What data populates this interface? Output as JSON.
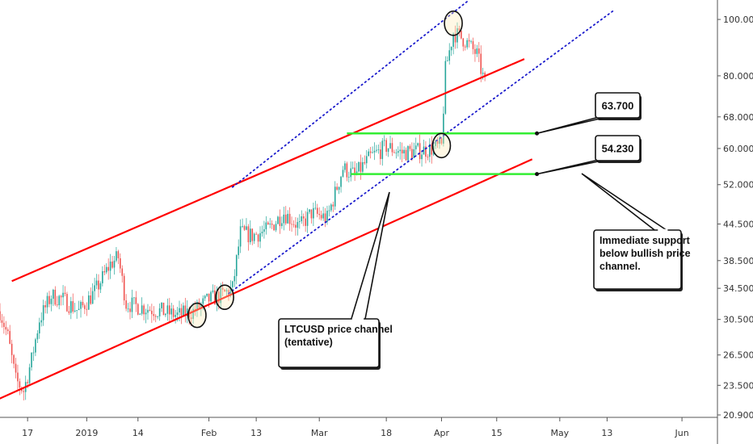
{
  "chart_data": {
    "type": "candlestick",
    "symbol_note": "LTCUSD",
    "y_scale": "log",
    "ylim": [
      20.9,
      108
    ],
    "x_range": [
      "2018-12-10",
      "2019-06-10"
    ],
    "y_ticks": [
      "100.000",
      "80.000",
      "68.000",
      "60.000",
      "52.000",
      "44.500",
      "38.500",
      "34.500",
      "30.500",
      "26.500",
      "23.500",
      "20.900"
    ],
    "x_ticks": [
      {
        "label": "17",
        "date": "2018-12-17"
      },
      {
        "label": "2019",
        "date": "2019-01-01"
      },
      {
        "label": "14",
        "date": "2019-01-14"
      },
      {
        "label": "Feb",
        "date": "2019-02-01"
      },
      {
        "label": "13",
        "date": "2019-02-13"
      },
      {
        "label": "Mar",
        "date": "2019-03-01"
      },
      {
        "label": "18",
        "date": "2019-03-18"
      },
      {
        "label": "Apr",
        "date": "2019-04-01"
      },
      {
        "label": "15",
        "date": "2019-04-15"
      },
      {
        "label": "May",
        "date": "2019-05-01"
      },
      {
        "label": "13",
        "date": "2019-05-13"
      },
      {
        "label": "Jun",
        "date": "2019-06-01"
      }
    ],
    "price_path": [
      [
        "2018-12-10",
        31.5
      ],
      [
        "2018-12-12",
        28.5
      ],
      [
        "2018-12-14",
        24.0
      ],
      [
        "2018-12-16",
        23.0
      ],
      [
        "2018-12-18",
        26.0
      ],
      [
        "2018-12-20",
        30.5
      ],
      [
        "2018-12-23",
        33.5
      ],
      [
        "2018-12-26",
        33.0
      ],
      [
        "2018-12-30",
        31.5
      ],
      [
        "2019-01-03",
        34.0
      ],
      [
        "2019-01-07",
        38.0
      ],
      [
        "2019-01-09",
        39.0
      ],
      [
        "2019-01-11",
        32.5
      ],
      [
        "2019-01-15",
        32.0
      ],
      [
        "2019-01-20",
        31.5
      ],
      [
        "2019-01-24",
        31.0
      ],
      [
        "2019-01-28",
        31.5
      ],
      [
        "2019-02-01",
        33.0
      ],
      [
        "2019-02-04",
        33.5
      ],
      [
        "2019-02-07",
        34.5
      ],
      [
        "2019-02-09",
        43.0
      ],
      [
        "2019-02-12",
        42.5
      ],
      [
        "2019-02-16",
        43.5
      ],
      [
        "2019-02-20",
        46.5
      ],
      [
        "2019-02-24",
        44.0
      ],
      [
        "2019-02-27",
        46.5
      ],
      [
        "2019-03-03",
        45.5
      ],
      [
        "2019-03-07",
        55.5
      ],
      [
        "2019-03-10",
        54.0
      ],
      [
        "2019-03-14",
        58.0
      ],
      [
        "2019-03-18",
        60.5
      ],
      [
        "2019-03-22",
        59.0
      ],
      [
        "2019-03-27",
        59.5
      ],
      [
        "2019-04-01",
        60.5
      ],
      [
        "2019-04-02",
        82.0
      ],
      [
        "2019-04-04",
        95.0
      ],
      [
        "2019-04-07",
        92.0
      ],
      [
        "2019-04-10",
        87.0
      ],
      [
        "2019-04-12",
        77.5
      ]
    ],
    "trendlines": {
      "red_upper": {
        "color": "#ff0000",
        "from": [
          "2018-12-13",
          35.5
        ],
        "to": [
          "2019-04-22",
          85.5
        ]
      },
      "red_lower": {
        "color": "#ff0000",
        "from": [
          "2018-12-08",
          22.0
        ],
        "to": [
          "2019-04-24",
          57.5
        ]
      },
      "dotted_upper": {
        "color": "#1a1acc",
        "from": [
          "2019-02-07",
          51.5
        ],
        "to": [
          "2019-04-08",
          108.0
        ]
      },
      "dotted_lower": {
        "color": "#1a1acc",
        "from": [
          "2019-02-06",
          33.8
        ],
        "to": [
          "2019-05-15",
          104.0
        ]
      }
    },
    "levels": [
      {
        "value": 63.7,
        "label": "63.700",
        "color": "#33ee33",
        "from": "2019-03-08",
        "to": "2019-04-25"
      },
      {
        "value": 54.23,
        "label": "54.230",
        "color": "#33ee33",
        "from": "2019-03-09",
        "to": "2019-04-25"
      }
    ],
    "highlights": [
      {
        "date": "2019-01-29",
        "value": 31.0
      },
      {
        "date": "2019-02-05",
        "value": 33.3
      },
      {
        "date": "2019-04-01",
        "value": 60.7
      },
      {
        "date": "2019-04-04",
        "value": 98.5
      }
    ],
    "annotations": {
      "channel_note": [
        "LTCUSD price channel",
        "(tentative)"
      ],
      "support_note": [
        "Immediate support",
        "below bullish price",
        "channel."
      ]
    },
    "colors": {
      "up": "#26a69a",
      "down": "#ef5350",
      "axis_text": "#333333",
      "grid": "#e0e3eb"
    }
  }
}
